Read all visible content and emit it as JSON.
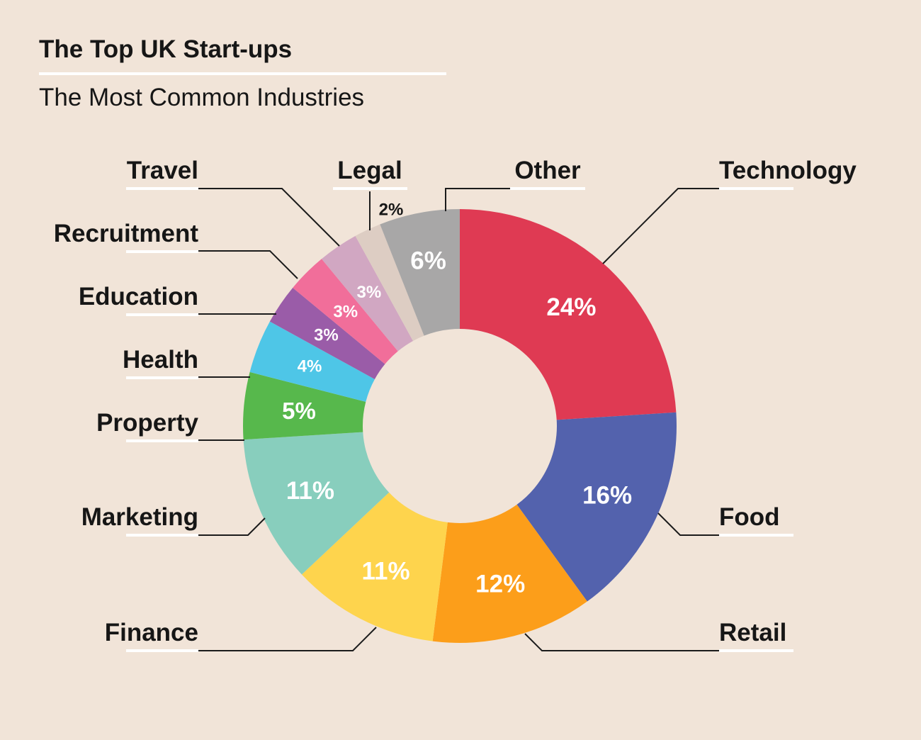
{
  "chart_data": {
    "type": "pie",
    "variant": "donut",
    "title": "The Top UK Start-ups",
    "subtitle": "The Most Common Industries",
    "unit": "%",
    "slices": [
      {
        "label": "Technology",
        "value": 24,
        "value_label": "24%",
        "color": "#df3a53"
      },
      {
        "label": "Food",
        "value": 16,
        "value_label": "16%",
        "color": "#5362ad"
      },
      {
        "label": "Retail",
        "value": 12,
        "value_label": "12%",
        "color": "#fc9e1a"
      },
      {
        "label": "Finance",
        "value": 11,
        "value_label": "11%",
        "color": "#fed44d"
      },
      {
        "label": "Marketing",
        "value": 11,
        "value_label": "11%",
        "color": "#88cebd"
      },
      {
        "label": "Property",
        "value": 5,
        "value_label": "5%",
        "color": "#57b84c"
      },
      {
        "label": "Health",
        "value": 4,
        "value_label": "4%",
        "color": "#4ec6e7"
      },
      {
        "label": "Education",
        "value": 3,
        "value_label": "3%",
        "color": "#9a5ca8"
      },
      {
        "label": "Recruitment",
        "value": 3,
        "value_label": "3%",
        "color": "#f16e9a"
      },
      {
        "label": "Travel",
        "value": 3,
        "value_label": "3%",
        "color": "#d1a7c2"
      },
      {
        "label": "Legal",
        "value": 2,
        "value_label": "2%",
        "color": "#ddcdc3"
      },
      {
        "label": "Other",
        "value": 6,
        "value_label": "6%",
        "color": "#a8a7a7"
      }
    ]
  }
}
